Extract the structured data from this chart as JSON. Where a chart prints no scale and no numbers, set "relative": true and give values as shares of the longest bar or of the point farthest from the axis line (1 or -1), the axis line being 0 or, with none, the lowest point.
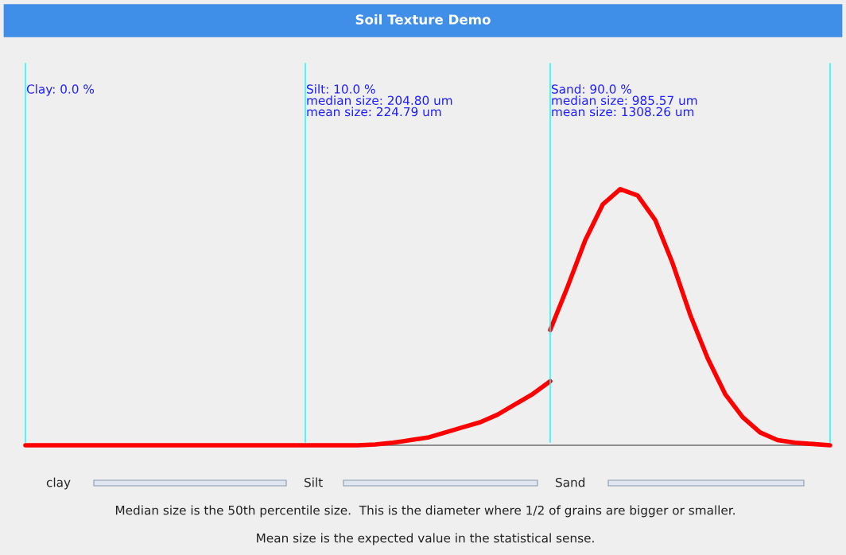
{
  "chart_data": {
    "type": "line",
    "title": "Soil Texture Demo",
    "relative": true,
    "categories": [
      null,
      null,
      null,
      null,
      null,
      null,
      null,
      null,
      null,
      null,
      null,
      null,
      null,
      null,
      null,
      null,
      null,
      null,
      null,
      null,
      null,
      null,
      null,
      null,
      null,
      null,
      null,
      null,
      null,
      null,
      null,
      null,
      null,
      null,
      null,
      null,
      null,
      null,
      null,
      null,
      null,
      null,
      null,
      null,
      null,
      null,
      null
    ],
    "series": [
      {
        "color": "#ff0000",
        "values": [
          0,
          0,
          0,
          0,
          0,
          0,
          0,
          0,
          0,
          0,
          0,
          0,
          0,
          0,
          0,
          0,
          0,
          0,
          0,
          0,
          0.003,
          0.01,
          0.02,
          0.03,
          0.05,
          0.07,
          0.09,
          0.12,
          0.16,
          0.2,
          0.25,
          null,
          null,
          null,
          null,
          null,
          null,
          null,
          null,
          null,
          null,
          null,
          null,
          null,
          null,
          null,
          null
        ]
      },
      {
        "color": "#ff0000",
        "values": [
          null,
          null,
          null,
          null,
          null,
          null,
          null,
          null,
          null,
          null,
          null,
          null,
          null,
          null,
          null,
          null,
          null,
          null,
          null,
          null,
          null,
          null,
          null,
          null,
          null,
          null,
          null,
          null,
          null,
          null,
          0.45,
          0.62,
          0.8,
          0.94,
          1,
          0.975,
          0.88,
          0.71,
          0.51,
          0.34,
          0.2,
          0.11,
          0.05,
          0.02,
          0.01,
          0.005,
          0
        ]
      }
    ],
    "annotations": [
      "Clay: 0.0 %",
      "Silt: 10.0 %\nmedian size: 204.80 um\nmean size: 224.79 um",
      "Sand: 90.0 %\nmedian size: 985.57 um\nmean size: 1308.26 um",
      "clay",
      "Silt",
      "Sand",
      "Median size is the 50th percentile size.  This is the diameter where 1/2 of grains are bigger or smaller.",
      "Mean size is the expected value in the statistical sense."
    ],
    "grid": false,
    "legend": false,
    "marker": "none",
    "line_style": "solid"
  }
}
